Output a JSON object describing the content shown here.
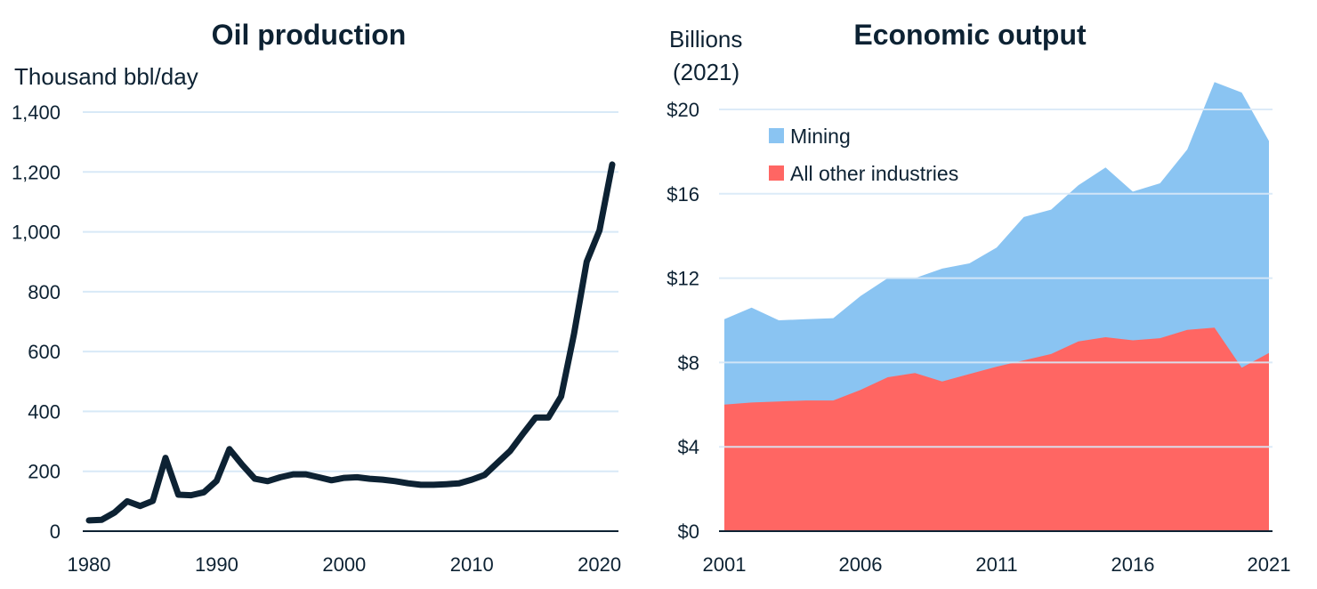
{
  "chart_data": [
    {
      "type": "line",
      "title": "Oil production",
      "ylabel": "Thousand bbl/day",
      "ylim": [
        0,
        1400
      ],
      "yticks": [
        0,
        200,
        400,
        600,
        800,
        1000,
        1200,
        1400
      ],
      "ytick_labels": [
        "0",
        "200",
        "400",
        "600",
        "800",
        "1,000",
        "1,200",
        "1,400"
      ],
      "xlim": [
        1980,
        2021
      ],
      "xticks": [
        1980,
        1990,
        2000,
        2010,
        2020
      ],
      "xtick_labels": [
        "1980",
        "1990",
        "2000",
        "2010",
        "2020"
      ],
      "grid": true,
      "colors": {
        "line": "#0d2233",
        "grid": "#d8e9f7"
      },
      "x": [
        1980,
        1981,
        1982,
        1983,
        1984,
        1985,
        1986,
        1987,
        1988,
        1989,
        1990,
        1991,
        1992,
        1993,
        1994,
        1995,
        1996,
        1997,
        1998,
        1999,
        2000,
        2001,
        2002,
        2003,
        2004,
        2005,
        2006,
        2007,
        2008,
        2009,
        2010,
        2011,
        2012,
        2013,
        2014,
        2015,
        2016,
        2017,
        2018,
        2019,
        2020,
        2021
      ],
      "series": [
        {
          "values": [
            36,
            38,
            62,
            100,
            84,
            101,
            245,
            122,
            120,
            130,
            168,
            274,
            222,
            175,
            167,
            180,
            190,
            190,
            180,
            170,
            178,
            180,
            175,
            172,
            167,
            160,
            155,
            155,
            157,
            160,
            172,
            188,
            228,
            268,
            325,
            380,
            380,
            450,
            658,
            900,
            1005,
            1225
          ]
        }
      ]
    },
    {
      "type": "area",
      "stacked": true,
      "title": "Economic output",
      "ylabel": "Billions (2021)",
      "ylabel_lines": [
        "Billions",
        "(2021)"
      ],
      "ylim": [
        0,
        20
      ],
      "yticks": [
        0,
        4,
        8,
        12,
        16,
        20
      ],
      "ytick_labels": [
        "$0",
        "$4",
        "$8",
        "$12",
        "$16",
        "$20"
      ],
      "xlim": [
        2001,
        2021
      ],
      "xticks": [
        2001,
        2006,
        2011,
        2016,
        2021
      ],
      "xtick_labels": [
        "2001",
        "2006",
        "2011",
        "2016",
        "2021"
      ],
      "grid": true,
      "legend_position": "top-left",
      "x": [
        2001,
        2002,
        2003,
        2004,
        2005,
        2006,
        2007,
        2008,
        2009,
        2010,
        2011,
        2012,
        2013,
        2014,
        2015,
        2016,
        2017,
        2018,
        2019,
        2020,
        2021
      ],
      "series": [
        {
          "name": "All other industries",
          "color": "#ff6663",
          "values": [
            6.0,
            6.1,
            6.15,
            6.2,
            6.2,
            6.7,
            7.3,
            7.5,
            7.1,
            7.45,
            7.8,
            8.1,
            8.4,
            9.0,
            9.2,
            9.05,
            9.15,
            9.55,
            9.65,
            7.75,
            8.45
          ]
        },
        {
          "name": "Mining",
          "color": "#8ac4f2",
          "values": [
            4.05,
            4.5,
            3.85,
            3.85,
            3.9,
            4.45,
            4.7,
            4.5,
            5.35,
            5.25,
            5.65,
            6.8,
            6.85,
            7.4,
            8.05,
            7.05,
            7.35,
            8.55,
            11.65,
            13.05,
            10.05
          ]
        }
      ]
    }
  ]
}
